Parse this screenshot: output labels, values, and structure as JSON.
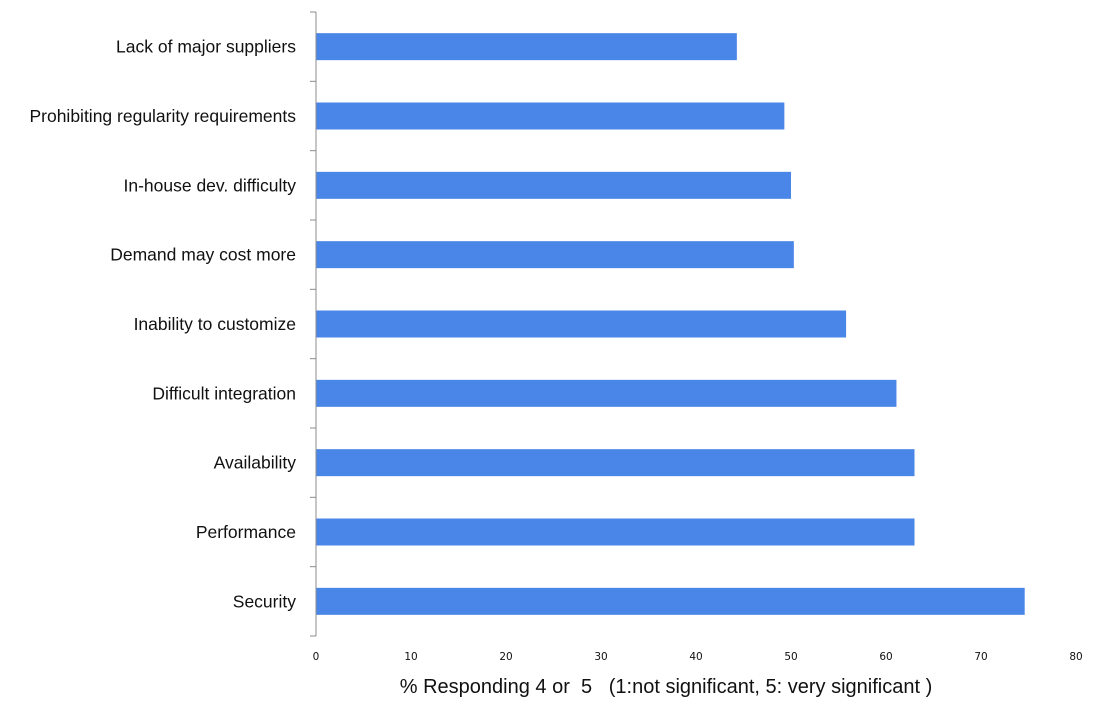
{
  "chart_data": {
    "type": "bar",
    "orientation": "horizontal",
    "categories": [
      "Lack of major suppliers",
      "Prohibiting regularity requirements",
      "In-house dev. difficulty",
      "Demand may cost more",
      "Inability to customize",
      "Difficult integration",
      "Availability",
      "Performance",
      "Security"
    ],
    "values": [
      44.3,
      49.3,
      50.0,
      50.3,
      55.8,
      61.1,
      63.0,
      63.0,
      74.6
    ],
    "xlabel": "% Responding 4 or  5   (1:not significant, 5: very significant )",
    "ylabel": "",
    "title": "",
    "xlim": [
      0,
      80
    ],
    "xticks": [
      "0",
      "10",
      "20",
      "30",
      "40",
      "50",
      "60",
      "70",
      "80"
    ],
    "grid": false,
    "bar_color": "#4a86e8"
  }
}
